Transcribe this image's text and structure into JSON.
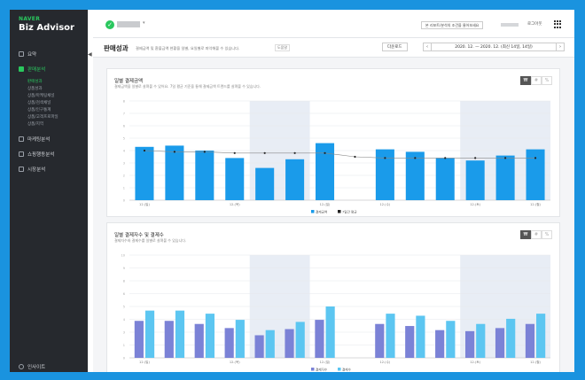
{
  "brand": {
    "sub": "NAVER",
    "title": "Biz Advisor"
  },
  "sidebar": {
    "items": [
      {
        "label": "요약"
      },
      {
        "label": "판매분석",
        "active": true
      },
      {
        "label": "마케팅분석"
      },
      {
        "label": "쇼핑행동분석"
      },
      {
        "label": "시장분석"
      }
    ],
    "subitems": [
      {
        "label": "판매성과",
        "active": true
      },
      {
        "label": "상품성과"
      },
      {
        "label": "상품/마케팅채널"
      },
      {
        "label": "상품/검색채널"
      },
      {
        "label": "상품/인구통계"
      },
      {
        "label": "상품/고객프로파일"
      },
      {
        "label": "상품/지역"
      }
    ],
    "footer": "인사이트"
  },
  "topbar": {
    "check_icon": "check-circle-icon",
    "caret": "▾",
    "top_button": "본 리포트/분석의 조건을 물어보세요",
    "logout": "로그아웃"
  },
  "header": {
    "title": "판매성과",
    "description": "결제금액 및 환불금액 현황을 일별, 요일별로 파악해볼 수 있습니다.",
    "tag": "도움말",
    "download": "다운로드",
    "prev": "‹",
    "next": "›",
    "date_range": "2020. 12. — 2020. 12. (최신 14일, 14일)"
  },
  "panels": [
    {
      "title": "일별 결제금액",
      "description": "결제금액을 일별로 살펴볼 수 있어요. 7일 평균 기준을 통해 결제금액 트렌드를 살펴볼 수 있습니다.",
      "tools": [
        "₩",
        "#",
        "%"
      ],
      "legend": [
        "결제금액",
        "7일간 평균"
      ]
    },
    {
      "title": "일별 결제자수 및 결제수",
      "description": "결제자수와 결제수를 일별로 살펴볼 수 있습니다.",
      "tools": [
        "₩",
        "#",
        "%"
      ],
      "legend": [
        "결제자수",
        "결제수"
      ]
    }
  ],
  "chart_data": [
    {
      "type": "bar",
      "title": "일별 결제금액",
      "ylim": [
        0,
        8
      ],
      "categories": [
        "12.(일)",
        "",
        "",
        "12.(목)",
        "",
        "",
        "12.(일)",
        "",
        "12.(수)",
        "",
        "",
        "12.(토)",
        "",
        "12.(월)"
      ],
      "series": [
        {
          "name": "결제금액",
          "type": "bar",
          "color": "#1a9bea",
          "values": [
            4.3,
            4.4,
            4.0,
            3.4,
            2.6,
            3.3,
            4.6,
            null,
            4.1,
            3.9,
            3.4,
            3.2,
            3.6,
            4.1
          ]
        },
        {
          "name": "7일간 평균",
          "type": "line",
          "color": "#222222",
          "values": [
            4.0,
            3.9,
            3.9,
            3.8,
            3.8,
            3.8,
            3.8,
            3.5,
            3.4,
            3.4,
            3.4,
            3.4,
            3.4,
            3.4
          ]
        }
      ],
      "highlight_ranges": [
        [
          4,
          5
        ],
        [
          11,
          13
        ]
      ],
      "grid": true
    },
    {
      "type": "bar",
      "title": "일별 결제자수 및 결제수",
      "ylim": [
        0,
        10
      ],
      "categories": [
        "12.(일)",
        "",
        "",
        "12.(목)",
        "",
        "",
        "12.(일)",
        "",
        "12.(수)",
        "",
        "",
        "12.(토)",
        "",
        "12.(월)"
      ],
      "series": [
        {
          "name": "결제자수",
          "type": "bar",
          "color": "#7b82d6",
          "values": [
            3.6,
            3.6,
            3.3,
            2.9,
            2.2,
            2.8,
            3.7,
            null,
            3.3,
            3.1,
            2.7,
            2.6,
            2.9,
            3.3
          ]
        },
        {
          "name": "결제수",
          "type": "bar",
          "color": "#5cc6f1",
          "values": [
            4.6,
            4.6,
            4.3,
            3.7,
            2.7,
            3.5,
            5.0,
            null,
            4.3,
            4.1,
            3.6,
            3.3,
            3.8,
            4.3
          ]
        }
      ],
      "highlight_ranges": [
        [
          4,
          5
        ],
        [
          11,
          13
        ]
      ],
      "grid": true
    }
  ]
}
